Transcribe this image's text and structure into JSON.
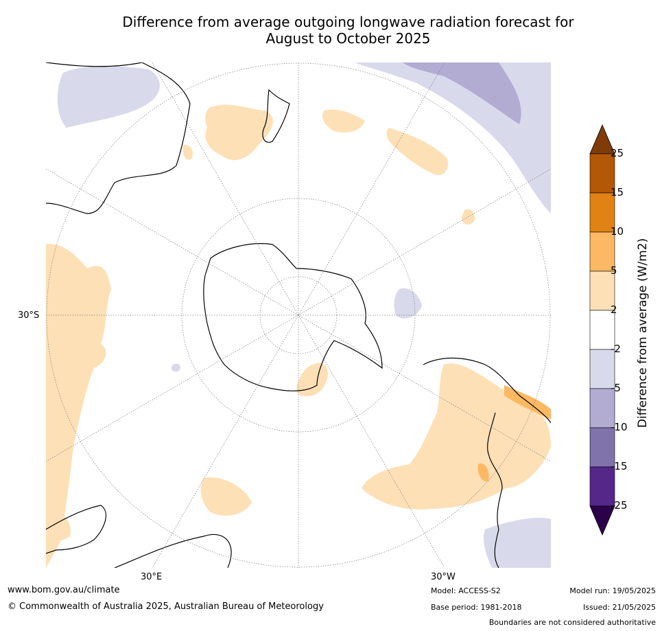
{
  "title_line1": "Difference from average outgoing longwave radiation forecast for",
  "title_line2": "August to October 2025",
  "lat_label": "30°S",
  "lon_labels": [
    "30°E",
    "30°W"
  ],
  "colorbar": {
    "title": "Difference from average (W/m2)",
    "ticks": [
      "25",
      "15",
      "10",
      "5",
      "2",
      "-2",
      "-5",
      "-10",
      "-15",
      "-25"
    ],
    "colors": [
      "#7f3b08",
      "#b35806",
      "#e08214",
      "#fdb863",
      "#fee0b6",
      "#ffffff",
      "#d8daeb",
      "#b2abd2",
      "#8073ac",
      "#542788",
      "#2d004b"
    ]
  },
  "footer": {
    "website": "www.bom.gov.au/climate",
    "copyright": "© Commonwealth of Australia 2025, Australian Bureau of Meteorology",
    "model": "Model: ACCESS-S2",
    "base_period": "Base period: 1981-2018",
    "model_run": "Model run: 19/05/2025",
    "issued": "Issued: 21/05/2025",
    "boundaries": "Boundaries are not considered authoritative"
  }
}
